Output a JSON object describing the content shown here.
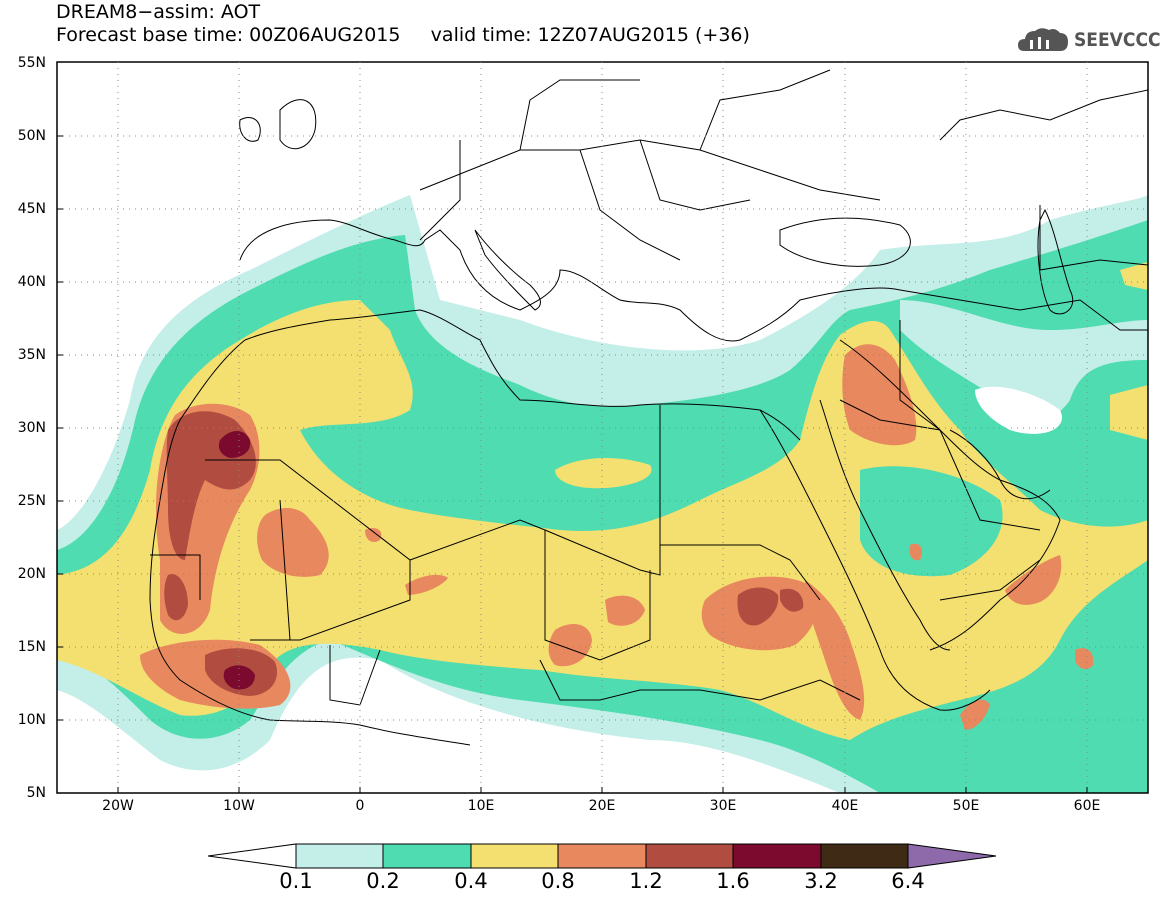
{
  "title_line1": "DREAM8−assim: AOT",
  "title_line2": "Forecast base time: 00Z06AUG2015     valid time: 12Z07AUG2015 (+36)",
  "logo_text": "SEEVCCC",
  "lat_labels": [
    "55N",
    "50N",
    "45N",
    "40N",
    "35N",
    "30N",
    "25N",
    "20N",
    "15N",
    "10N",
    "5N"
  ],
  "lon_labels": [
    "20W",
    "10W",
    "0",
    "10E",
    "20E",
    "30E",
    "40E",
    "50E",
    "60E"
  ],
  "colorbar": {
    "levels": [
      "0.1",
      "0.2",
      "0.4",
      "0.8",
      "1.2",
      "1.6",
      "3.2",
      "6.4"
    ],
    "colors": [
      "#c4eee8",
      "#4fdcb0",
      "#f4e070",
      "#e8885e",
      "#b04d40",
      "#7c0a2e",
      "#3f2a16",
      "#8e6aaa"
    ]
  },
  "colors": {
    "c1": "#c4eee8",
    "c2": "#4fdcb0",
    "c3": "#f4e070",
    "c4": "#e8885e",
    "c5": "#b04d40",
    "c6": "#7c0a2e"
  }
}
